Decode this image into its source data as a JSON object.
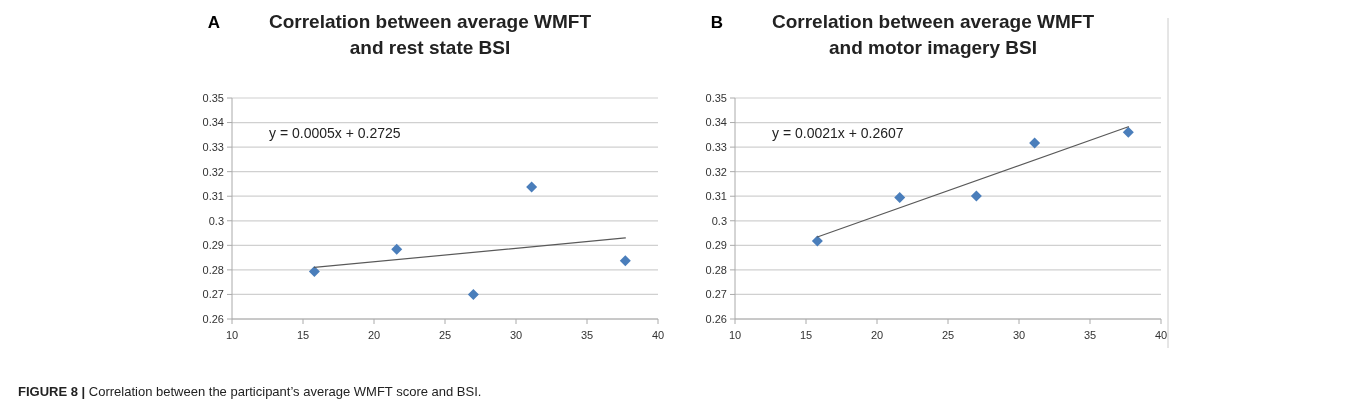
{
  "chart_data": [
    {
      "type": "scatter",
      "title": "Correlation between average WMFT\nand rest state BSI",
      "annotations": [
        "A",
        "y = 0.0005x + 0.2725",
        "FIGURE 8 | Correlation between the participant’s average WMFT score and BSI."
      ],
      "xlim": [
        10,
        40
      ],
      "xticks": [
        10,
        15,
        20,
        25,
        30,
        35,
        40
      ],
      "ylim": [
        0.26,
        0.35
      ],
      "yticks": [
        {
          "value": 0.26,
          "label": "0.26"
        },
        {
          "value": 0.27,
          "label": "0.27"
        },
        {
          "value": 0.28,
          "label": "0.28"
        },
        {
          "value": 0.29,
          "label": "0.29"
        },
        {
          "value": 0.3,
          "label": "0.3"
        },
        {
          "value": 0.31,
          "label": "0.31"
        },
        {
          "value": 0.32,
          "label": "0.32"
        },
        {
          "value": 0.33,
          "label": "0.33"
        },
        {
          "value": 0.34,
          "label": "0.34"
        },
        {
          "value": 0.35,
          "label": "0.35"
        }
      ],
      "grid": "y",
      "series": [
        {
          "marker": "diamond",
          "color": "#4a7ebb",
          "x": [
            15.8,
            21.6,
            27,
            31.1,
            37.7
          ],
          "values": [
            0.2793,
            0.2884,
            0.27,
            0.3138,
            0.2837
          ]
        },
        {
          "type": "line",
          "color": "#595959",
          "x": [
            15.8,
            37.7
          ],
          "values": [
            0.281,
            0.293
          ]
        }
      ]
    },
    {
      "type": "scatter",
      "title": "Correlation between average WMFT\nand motor imagery BSI",
      "annotations": [
        "B",
        "y = 0.0021x + 0.2607"
      ],
      "xlim": [
        10,
        40
      ],
      "xticks": [
        10,
        15,
        20,
        25,
        30,
        35,
        40
      ],
      "ylim": [
        0.26,
        0.35
      ],
      "yticks": [
        {
          "value": 0.26,
          "label": "0.26"
        },
        {
          "value": 0.27,
          "label": "0.27"
        },
        {
          "value": 0.28,
          "label": "0.28"
        },
        {
          "value": 0.29,
          "label": "0.29"
        },
        {
          "value": 0.3,
          "label": "0.3"
        },
        {
          "value": 0.31,
          "label": "0.31"
        },
        {
          "value": 0.32,
          "label": "0.32"
        },
        {
          "value": 0.33,
          "label": "0.33"
        },
        {
          "value": 0.34,
          "label": "0.34"
        },
        {
          "value": 0.35,
          "label": "0.35"
        }
      ],
      "grid": "y",
      "series": [
        {
          "marker": "diamond",
          "color": "#4a7ebb",
          "x": [
            15.8,
            21.6,
            27,
            31.1,
            37.7
          ],
          "values": [
            0.2918,
            0.3095,
            0.3101,
            0.3317,
            0.3361
          ]
        },
        {
          "type": "line",
          "color": "#595959",
          "x": [
            15.8,
            37.7
          ],
          "values": [
            0.2934,
            0.3383
          ]
        }
      ]
    }
  ]
}
